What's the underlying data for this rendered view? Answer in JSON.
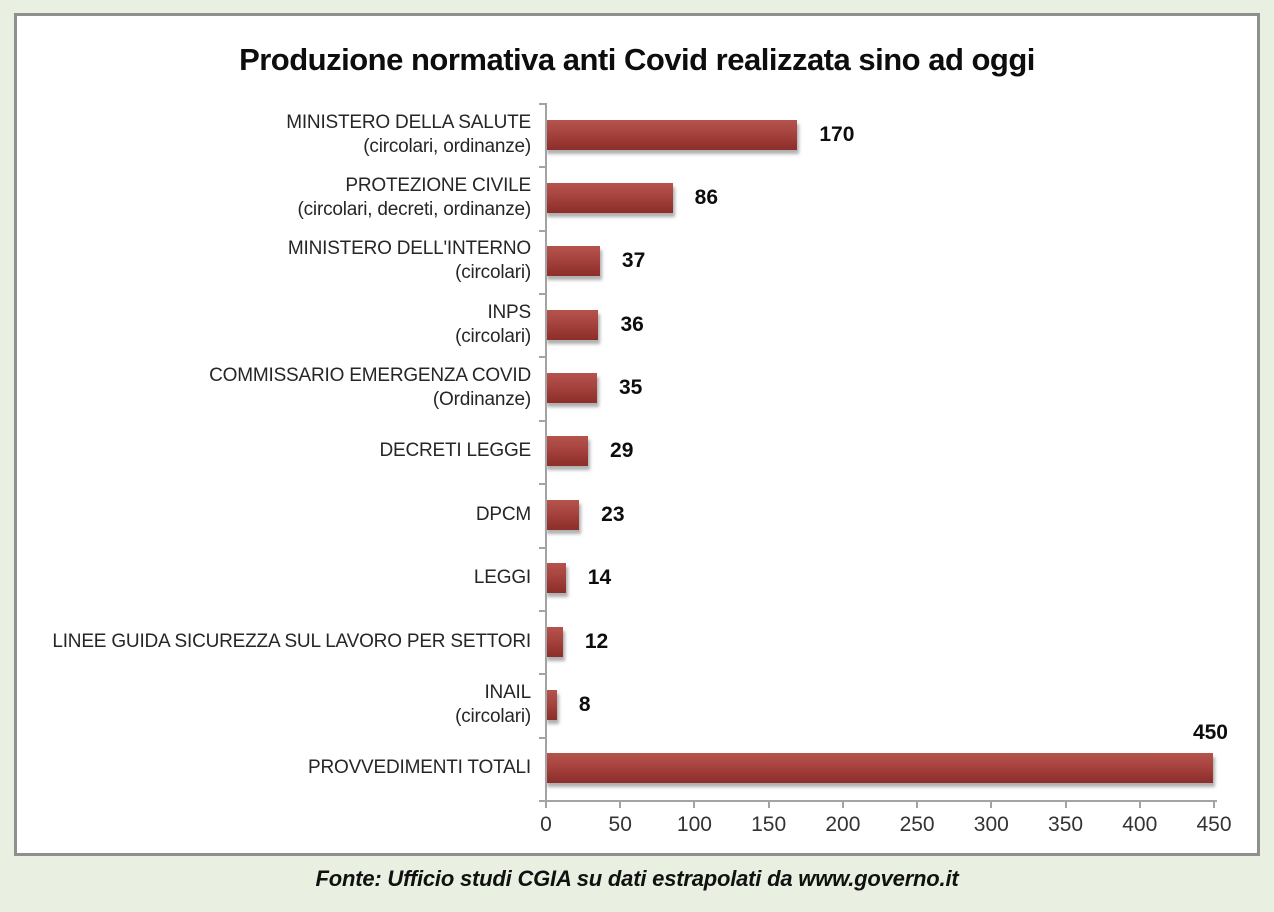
{
  "page": {
    "background_color": "#e9efe1",
    "chart_background": "#ffffff",
    "border_color": "#8f8f8f",
    "bar_color": "#a23e39",
    "axis_color": "#a3a3a3"
  },
  "source_note": "Fonte: Ufficio studi CGIA su dati estrapolati da www.governo.it",
  "chart_data": {
    "type": "bar",
    "orientation": "horizontal",
    "title": "Produzione normativa anti Covid realizzata sino ad oggi",
    "categories": [
      "MINISTERO DELLA SALUTE\n(circolari, ordinanze)",
      "PROTEZIONE CIVILE\n(circolari, decreti, ordinanze)",
      "MINISTERO DELL'INTERNO\n(circolari)",
      "INPS\n(circolari)",
      "COMMISSARIO EMERGENZA COVID\n(Ordinanze)",
      "DECRETI LEGGE",
      "DPCM",
      "LEGGI",
      "LINEE GUIDA SICUREZZA SUL LAVORO PER SETTORI",
      "INAIL\n(circolari)",
      "PROVVEDIMENTI TOTALI"
    ],
    "values": [
      170,
      86,
      37,
      36,
      35,
      29,
      23,
      14,
      12,
      8,
      450
    ],
    "value_labels": [
      "170",
      "86",
      "37",
      "36",
      "35",
      "29",
      "23",
      "14",
      "12",
      "8",
      "450"
    ],
    "value_label_above_bar_for": [
      "PROVVEDIMENTI TOTALI"
    ],
    "xlabel": "",
    "ylabel": "",
    "xlim": [
      0,
      450
    ],
    "xticks": [
      0,
      50,
      100,
      150,
      200,
      250,
      300,
      350,
      400,
      450
    ],
    "grid": false,
    "legend": false,
    "bar_gradient": [
      "#b5534c",
      "#a84541",
      "#8c2f2b"
    ]
  }
}
